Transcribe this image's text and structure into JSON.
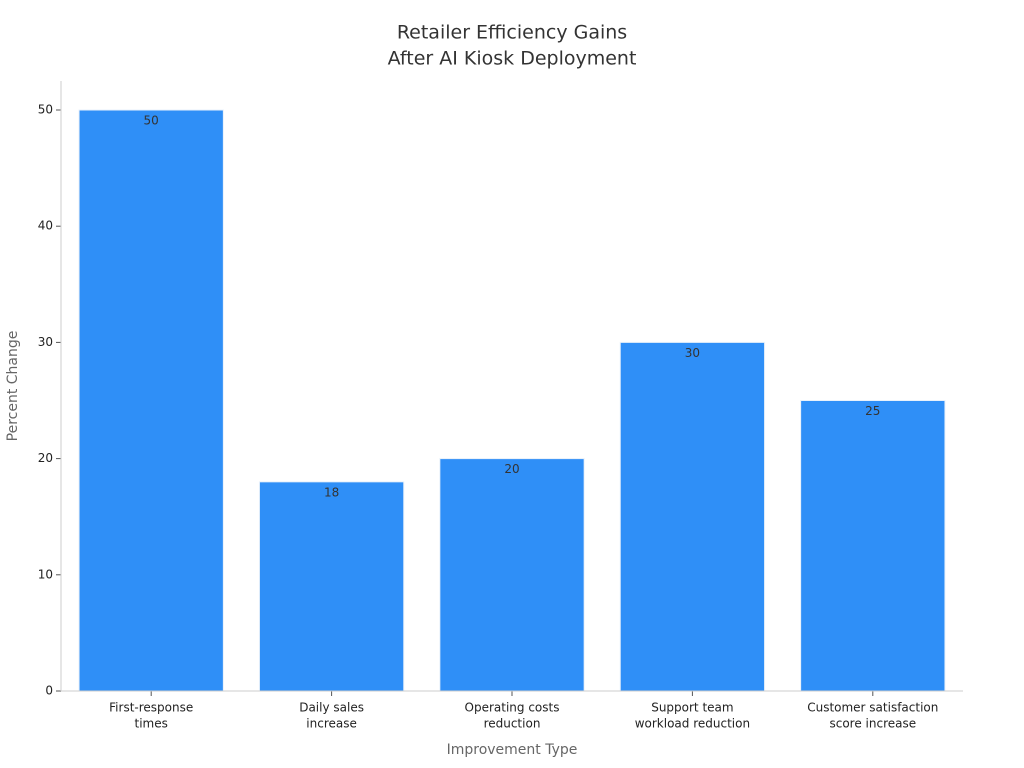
{
  "chart_data": {
    "type": "bar",
    "title": [
      "Retailer Efficiency Gains",
      "After AI Kiosk Deployment"
    ],
    "x_label": "Improvement Type",
    "y_label": "Percent Change",
    "categories": [
      [
        "First-response",
        "times"
      ],
      [
        "Daily sales",
        "increase"
      ],
      [
        "Operating costs",
        "reduction"
      ],
      [
        "Support team",
        "workload reduction"
      ],
      [
        "Customer satisfaction",
        "score increase"
      ]
    ],
    "values": [
      50,
      18,
      20,
      30,
      25
    ],
    "color": "#2f8ff7",
    "ylim": [
      0,
      52.5
    ],
    "yticks": [
      0,
      10,
      20,
      30,
      40,
      50
    ],
    "grid": false
  }
}
